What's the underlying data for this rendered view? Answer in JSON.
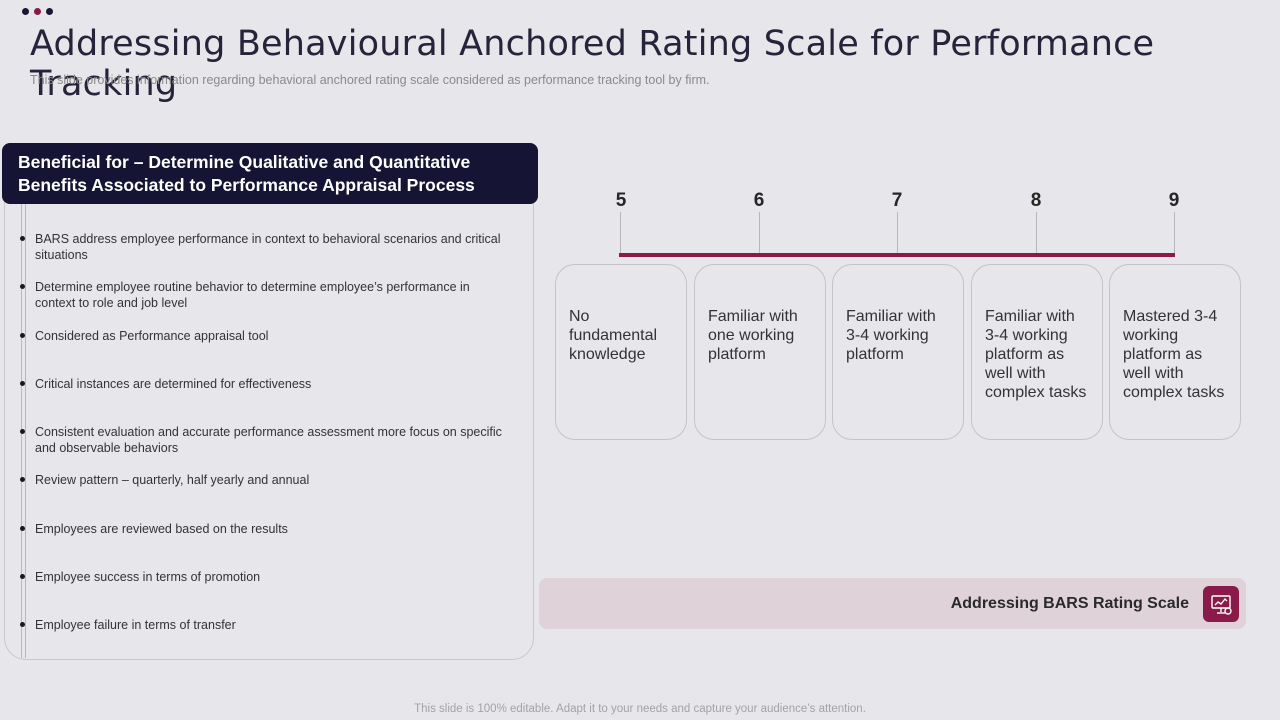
{
  "slide": {
    "title": "Addressing Behavioural Anchored Rating Scale for Performance Tracking",
    "subtitle": "This slide provides information regarding behavioral anchored rating scale considered as performance tracking tool by firm.",
    "footnote": "This slide is 100% editable. Adapt it to your needs and capture your audience’s attention."
  },
  "left": {
    "header_line1": "Beneficial for – Determine Qualitative and Quantitative",
    "header_line2": "Benefits Associated to Performance Appraisal Process",
    "bullets": [
      "BARS address employee performance in context to behavioral scenarios and critical situations",
      "Determine employee routine behavior to determine employee’s performance in context to role and job level",
      "Considered as Performance appraisal tool",
      "Critical instances are determined for effectiveness",
      "Consistent evaluation and accurate performance assessment more focus on specific and observable behaviors",
      "Review pattern – quarterly, half yearly and annual",
      "Employees are reviewed based on the results",
      "Employee success in terms of promotion",
      "Employee failure in terms of transfer"
    ]
  },
  "scale": {
    "levels": [
      {
        "rating": "5",
        "description": "No fundamental knowledge"
      },
      {
        "rating": "6",
        "description": "Familiar with one working platform"
      },
      {
        "rating": "7",
        "description": "Familiar with 3-4 working platform"
      },
      {
        "rating": "8",
        "description": "Familiar with 3-4 working platform as well with complex tasks"
      },
      {
        "rating": "9",
        "description": "Mastered 3-4 working platform as well with complex tasks"
      }
    ],
    "accent_color": "#8a1a4a"
  },
  "footer_bar": {
    "label": "Addressing BARS Rating Scale",
    "icon": "presentation-chart-icon"
  }
}
